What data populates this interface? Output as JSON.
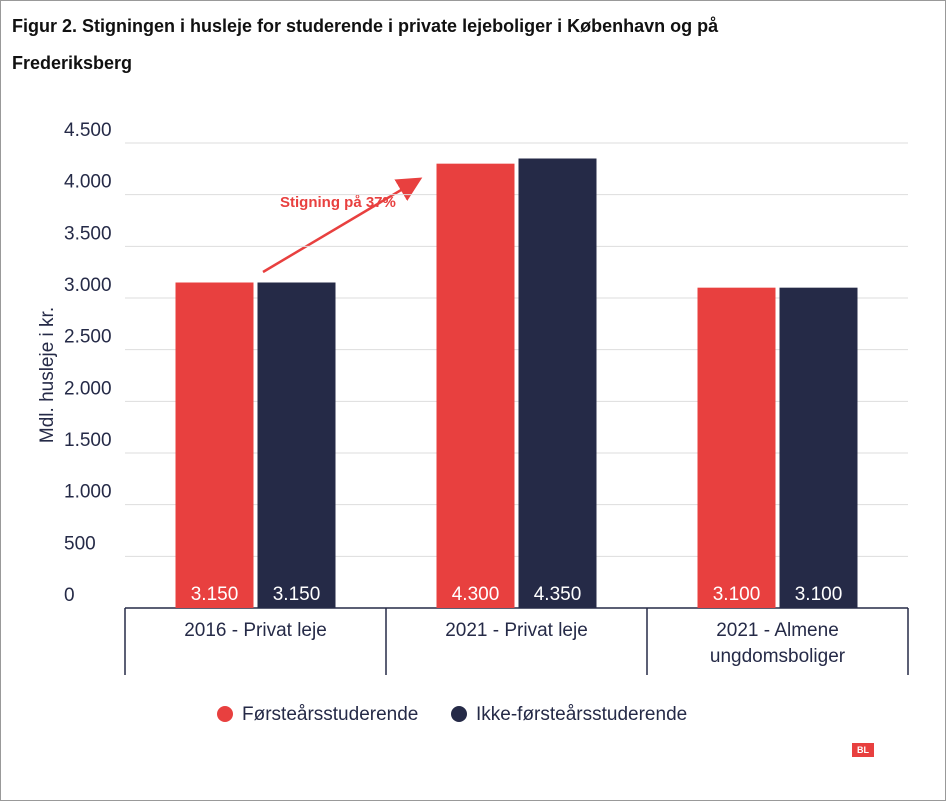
{
  "chart_data": {
    "type": "bar",
    "title": "Figur 2. Stigningen i husleje for studerende i private lejeboliger i København og på Frederiksberg",
    "ylabel": "Mdl. husleje i kr.",
    "categories": [
      "2016 - Privat leje",
      "2021 - Privat leje",
      "2021 - Almene ungdomsboliger"
    ],
    "series": [
      {
        "name": "Førsteårsstuderende",
        "color": "#e8403f",
        "values": [
          3150,
          4300,
          3100
        ],
        "value_labels": [
          "3.150",
          "4.300",
          "3.100"
        ]
      },
      {
        "name": "Ikke-førsteårsstuderende",
        "color": "#252a47",
        "values": [
          3150,
          4350,
          3100
        ],
        "value_labels": [
          "3.150",
          "4.350",
          "3.100"
        ]
      }
    ],
    "ylim": [
      0,
      4500
    ],
    "yticks": [
      0,
      500,
      {
        "value": 1000,
        "label": "1.000"
      },
      {
        "value": 1500,
        "label": "1.500"
      },
      {
        "value": 2000,
        "label": "2.000"
      },
      {
        "value": 2500,
        "label": "2.500"
      },
      {
        "value": 3000,
        "label": "3.000"
      },
      {
        "value": 3500,
        "label": "3.500"
      },
      {
        "value": 4000,
        "label": "4.000"
      },
      {
        "value": 4500,
        "label": "4.500"
      }
    ],
    "grid": true,
    "annotation": "Stigning på 37%",
    "logo": "BL"
  }
}
